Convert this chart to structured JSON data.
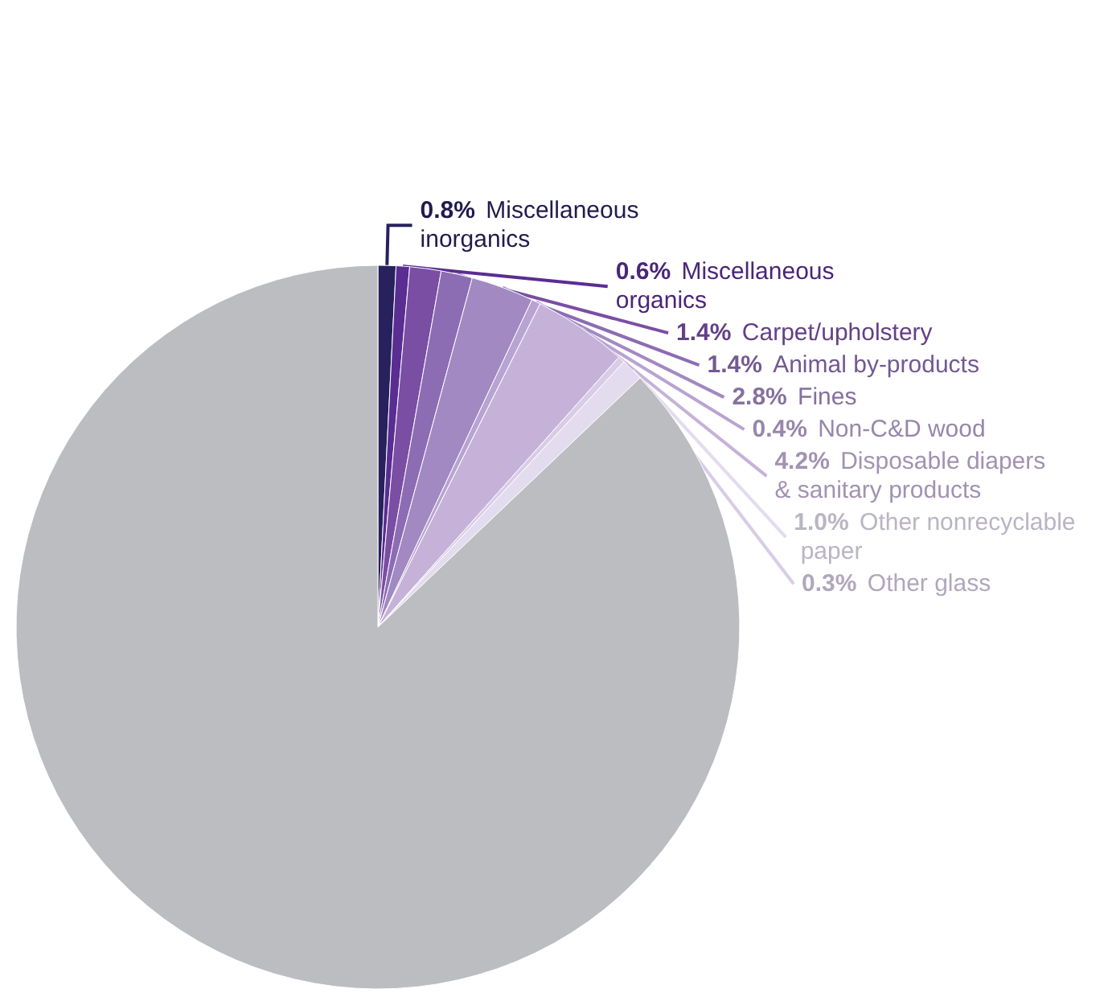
{
  "chart_data": {
    "type": "pie",
    "categories": [
      "Miscellaneous inorganics",
      "Miscellaneous organics",
      "Carpet/upholstery",
      "Animal by-products",
      "Fines",
      "Non-C&D wood",
      "Disposable diapers & sanitary products",
      "Other glass",
      "Other nonrecyclable paper",
      null
    ],
    "values": [
      0.8,
      0.6,
      1.4,
      1.4,
      2.8,
      0.4,
      4.2,
      0.3,
      1.0,
      87.1
    ],
    "value_labels": [
      "0.8%",
      "0.6%",
      "1.4%",
      "1.4%",
      "2.8%",
      "0.4%",
      "4.2%",
      "0.3%",
      "1.0%",
      null
    ],
    "colors": [
      "#27215e",
      "#5a2d92",
      "#7a4ea3",
      "#8c6cb3",
      "#a289c2",
      "#b8a3d2",
      "#c6b2d8",
      "#d8cce6",
      "#e3dbee",
      "#bcbdc0"
    ],
    "legend": false
  }
}
